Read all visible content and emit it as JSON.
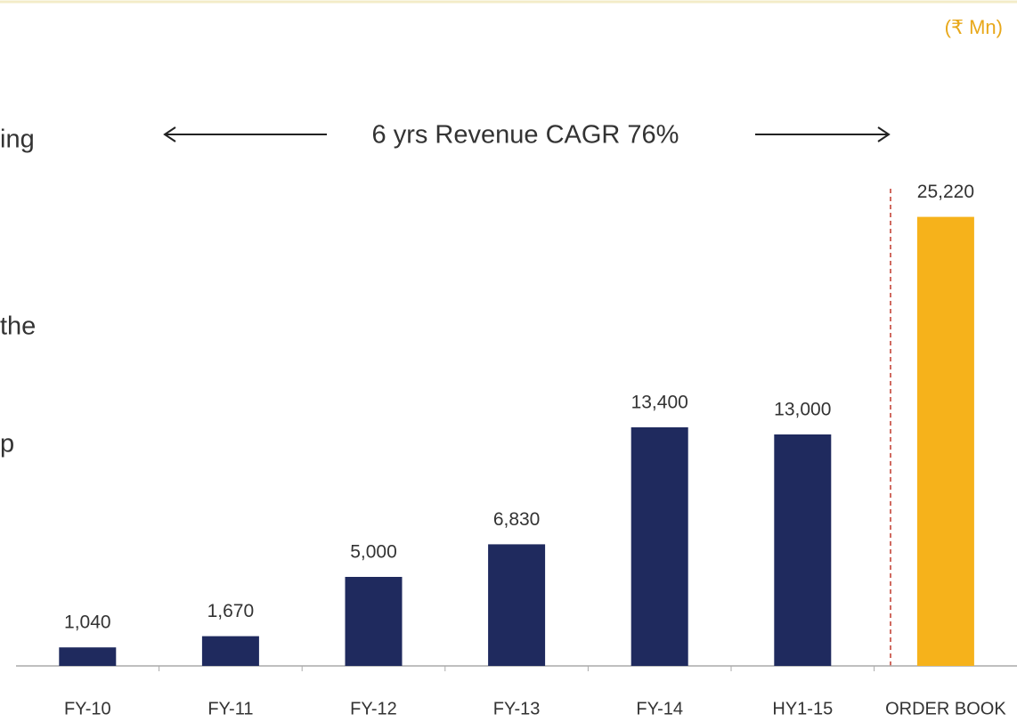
{
  "chart_data": {
    "type": "bar",
    "unit_label": "(₹ Mn)",
    "annotation": "6 yrs Revenue CAGR 76%",
    "side_texts": [
      "ing",
      "the",
      "p"
    ],
    "categories": [
      "FY-10",
      "FY-11",
      "FY-12",
      "FY-13",
      "FY-14",
      "HY1-15",
      "ORDER BOOK"
    ],
    "values": [
      1040,
      1670,
      5000,
      6830,
      13400,
      13000,
      25220
    ],
    "value_labels": [
      "1,040",
      "1,670",
      "5,000",
      "6,830",
      "13,400",
      "13,000",
      "25,220"
    ],
    "colors": [
      "#1f2a5e",
      "#1f2a5e",
      "#1f2a5e",
      "#1f2a5e",
      "#1f2a5e",
      "#1f2a5e",
      "#f6b21b"
    ]
  }
}
